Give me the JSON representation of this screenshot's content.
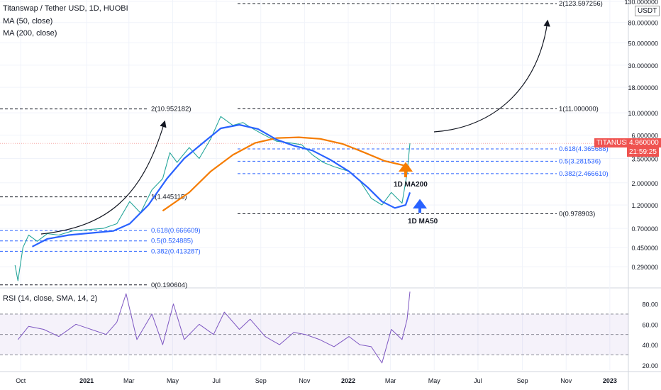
{
  "chart_data": [
    {
      "type": "line",
      "title": "Titanswap / Tether USD, 1D, HUOBI",
      "price_scale": "log",
      "currency_label": "USDT",
      "y_ticks": [
        "130.000000",
        "80.000000",
        "50.000000",
        "30.000000",
        "18.000000",
        "10.000000",
        "6.000000",
        "3.500000",
        "2.000000",
        "1.200000",
        "0.700000",
        "0.450000",
        "0.290000"
      ],
      "x_ticks": [
        "Oct",
        "2021",
        "Mar",
        "May",
        "Jul",
        "Sep",
        "Nov",
        "2022",
        "Mar",
        "May",
        "Jul",
        "Sep",
        "Nov",
        "2023"
      ],
      "series": [
        {
          "name": "MA (50, close)",
          "color": "#2962ff",
          "x": [
            "2020-10-25",
            "2020-11-15",
            "2020-12-15",
            "2021-01-15",
            "2021-02-15",
            "2021-03-10",
            "2021-04-05",
            "2021-05-01",
            "2021-05-25",
            "2021-06-20",
            "2021-07-15",
            "2021-08-10",
            "2021-09-05",
            "2021-10-01",
            "2021-10-25",
            "2021-11-20",
            "2021-12-15",
            "2022-01-10",
            "2022-02-05",
            "2022-02-25",
            "2022-03-15",
            "2022-03-30",
            "2022-04-05"
          ],
          "values": [
            0.46,
            0.55,
            0.6,
            0.63,
            0.66,
            0.78,
            1.2,
            2.2,
            3.5,
            5.0,
            7.0,
            7.6,
            6.9,
            5.4,
            4.7,
            4.2,
            3.4,
            2.6,
            1.8,
            1.3,
            1.12,
            1.2,
            1.6
          ]
        },
        {
          "name": "MA (200, close)",
          "color": "#f57c00",
          "x": [
            "2021-04-25",
            "2021-06-01",
            "2021-07-01",
            "2021-08-01",
            "2021-09-01",
            "2021-10-01",
            "2021-11-01",
            "2021-12-01",
            "2022-01-01",
            "2022-02-01",
            "2022-03-01",
            "2022-04-04"
          ],
          "values": [
            1.05,
            1.6,
            2.6,
            3.8,
            5.0,
            5.6,
            5.7,
            5.5,
            4.9,
            4.0,
            3.3,
            2.9
          ]
        },
        {
          "name": "Titanswap / Tether USD",
          "color": "#26a69a",
          "x": [
            "2020-10-01",
            "2020-10-05",
            "2020-10-12",
            "2020-10-20",
            "2020-11-01",
            "2020-11-15",
            "2020-12-01",
            "2020-12-20",
            "2021-01-10",
            "2021-02-01",
            "2021-02-20",
            "2021-03-10",
            "2021-03-25",
            "2021-04-10",
            "2021-04-25",
            "2021-05-05",
            "2021-05-15",
            "2021-06-01",
            "2021-06-15",
            "2021-07-01",
            "2021-07-15",
            "2021-08-01",
            "2021-08-15",
            "2021-08-25",
            "2021-09-10",
            "2021-10-01",
            "2021-10-20",
            "2021-11-05",
            "2021-11-20",
            "2021-12-05",
            "2021-12-20",
            "2022-01-10",
            "2022-01-25",
            "2022-02-10",
            "2022-02-25",
            "2022-03-10",
            "2022-03-25",
            "2022-04-01",
            "2022-04-05"
          ],
          "values": [
            0.3,
            0.21,
            0.45,
            0.6,
            0.52,
            0.62,
            0.6,
            0.66,
            0.68,
            0.7,
            0.78,
            1.3,
            1.0,
            1.7,
            2.2,
            4.0,
            3.2,
            4.5,
            3.5,
            5.5,
            9.2,
            7.5,
            8.0,
            7.2,
            6.2,
            5.2,
            5.0,
            4.8,
            3.8,
            3.2,
            2.9,
            2.6,
            2.1,
            1.4,
            1.2,
            1.6,
            1.25,
            2.5,
            4.96
          ]
        }
      ],
      "last_price": {
        "symbol": "TITANUSDT",
        "price": "4.960000",
        "countdown": "21:59:25"
      },
      "fib_levels": [
        {
          "label": "2(123.597256)",
          "value": 123.597256
        },
        {
          "label": "1(11.000000)",
          "value": 11.0
        },
        {
          "label": "0.618(4.365688)",
          "value": 4.365688
        },
        {
          "label": "0.5(3.281536)",
          "value": 3.281536
        },
        {
          "label": "0.382(2.466610)",
          "value": 2.46661
        },
        {
          "label": "0(0.978903)",
          "value": 0.978903
        },
        {
          "label": "2(10.952182)",
          "value": 10.952182
        },
        {
          "label": "1(1.445115)",
          "value": 1.445115
        },
        {
          "label": "0.618(0.666609)",
          "value": 0.666609
        },
        {
          "label": "0.5(0.524885)",
          "value": 0.524885
        },
        {
          "label": "0.382(0.413287)",
          "value": 0.413287
        },
        {
          "label": "0(0.190604)",
          "value": 0.190604
        }
      ],
      "annotations": {
        "ma200": "1D MA200",
        "ma50": "1D MA50"
      }
    },
    {
      "type": "line",
      "title": "RSI (14, close, SMA, 14, 2)",
      "y_ticks": [
        "80.00",
        "60.00",
        "40.00",
        "20.00"
      ],
      "band": [
        30,
        70
      ],
      "midline": 50,
      "series": [
        {
          "color": "#7e57c2",
          "x": [
            "2020-10-05",
            "2020-10-20",
            "2020-11-10",
            "2020-12-01",
            "2020-12-25",
            "2021-01-15",
            "2021-02-05",
            "2021-02-20",
            "2021-03-05",
            "2021-03-20",
            "2021-04-10",
            "2021-04-25",
            "2021-05-10",
            "2021-05-25",
            "2021-06-15",
            "2021-07-05",
            "2021-07-20",
            "2021-08-10",
            "2021-08-25",
            "2021-09-15",
            "2021-10-05",
            "2021-10-25",
            "2021-11-10",
            "2021-11-30",
            "2021-12-20",
            "2022-01-10",
            "2022-01-25",
            "2022-02-10",
            "2022-02-25",
            "2022-03-10",
            "2022-03-25",
            "2022-04-01",
            "2022-04-05"
          ],
          "values": [
            45,
            58,
            55,
            48,
            60,
            55,
            50,
            62,
            90,
            45,
            70,
            40,
            80,
            45,
            60,
            50,
            72,
            55,
            65,
            48,
            40,
            52,
            50,
            45,
            38,
            48,
            40,
            38,
            22,
            55,
            45,
            65,
            92
          ]
        }
      ]
    }
  ]
}
